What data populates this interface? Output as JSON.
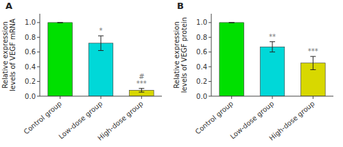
{
  "chart_data": [
    {
      "type": "bar",
      "title": "A",
      "ylabel": "Relative expression\nlevels of VEGF mRNA",
      "categories": [
        "Control group",
        "Low-dose group",
        "High-dose group"
      ],
      "values": [
        1.0,
        0.72,
        0.08
      ],
      "errors": [
        0.0,
        0.1,
        0.025
      ],
      "colors": [
        "#00e000",
        "#00d8d8",
        "#d8d800"
      ],
      "ylim": [
        0,
        1.12
      ],
      "yticks": [
        {
          "value": 0.0,
          "label": "0.0"
        },
        {
          "value": 0.2,
          "label": "0.2"
        },
        {
          "value": 0.4,
          "label": "0.4"
        },
        {
          "value": 0.6,
          "label": "0.6"
        },
        {
          "value": 0.8,
          "label": "0.8"
        },
        {
          "value": 1.0,
          "label": "1.0"
        }
      ],
      "annotations": [
        null,
        "*",
        "#\n***"
      ]
    },
    {
      "type": "bar",
      "title": "B",
      "ylabel": "Relative expression\nlevels of VEGF protein",
      "categories": [
        "Control group",
        "Low-dose group",
        "High-dose group"
      ],
      "values": [
        1.0,
        0.67,
        0.45
      ],
      "errors": [
        0.0,
        0.07,
        0.09
      ],
      "colors": [
        "#00e000",
        "#00d8d8",
        "#d8d800"
      ],
      "ylim": [
        0,
        1.12
      ],
      "yticks": [
        {
          "value": 0.0,
          "label": "0.0"
        },
        {
          "value": 0.2,
          "label": "0.2"
        },
        {
          "value": 0.4,
          "label": "0.4"
        },
        {
          "value": 0.6,
          "label": "0.6"
        },
        {
          "value": 0.8,
          "label": "0.8"
        },
        {
          "value": 1.0,
          "label": "1.0"
        }
      ],
      "annotations": [
        null,
        "**",
        "***"
      ]
    }
  ]
}
